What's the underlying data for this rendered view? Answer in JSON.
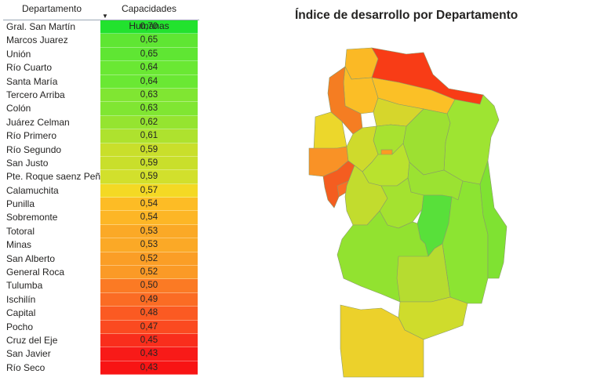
{
  "table": {
    "headers": {
      "departamento": "Departamento",
      "capacidades": "Capacidades Humanas"
    },
    "sort_indicator": "▼",
    "rows": [
      {
        "name": "Gral. San Martín",
        "value": "0,70",
        "color": "#22e22e"
      },
      {
        "name": "Marcos Juarez",
        "value": "0,65",
        "color": "#5fe633"
      },
      {
        "name": "Unión",
        "value": "0,65",
        "color": "#5fe633"
      },
      {
        "name": "Río Cuarto",
        "value": "0,64",
        "color": "#6ae833"
      },
      {
        "name": "Santa María",
        "value": "0,64",
        "color": "#6ae833"
      },
      {
        "name": "Tercero Arriba",
        "value": "0,63",
        "color": "#80e632"
      },
      {
        "name": "Colón",
        "value": "0,63",
        "color": "#80e632"
      },
      {
        "name": "Juárez Celman",
        "value": "0,62",
        "color": "#95e430"
      },
      {
        "name": "Río Primero",
        "value": "0,61",
        "color": "#aee22e"
      },
      {
        "name": "Río Segundo",
        "value": "0,59",
        "color": "#c9df2b"
      },
      {
        "name": "San Justo",
        "value": "0,59",
        "color": "#c9df2b"
      },
      {
        "name": "Pte. Roque saenz Peña",
        "value": "0,59",
        "color": "#d2e02c"
      },
      {
        "name": "Calamuchita",
        "value": "0,57",
        "color": "#f4d924"
      },
      {
        "name": "Punilla",
        "value": "0,54",
        "color": "#fdbc25"
      },
      {
        "name": "Sobremonte",
        "value": "0,54",
        "color": "#fdb626"
      },
      {
        "name": "Totoral",
        "value": "0,53",
        "color": "#fba926"
      },
      {
        "name": "Minas",
        "value": "0,53",
        "color": "#fba926"
      },
      {
        "name": "San Alberto",
        "value": "0,52",
        "color": "#fb9e26"
      },
      {
        "name": "General Roca",
        "value": "0,52",
        "color": "#fb9a26"
      },
      {
        "name": "Tulumba",
        "value": "0,50",
        "color": "#fb7a24"
      },
      {
        "name": "Ischilín",
        "value": "0,49",
        "color": "#fb6c24"
      },
      {
        "name": "Capital",
        "value": "0,48",
        "color": "#fb5a22"
      },
      {
        "name": "Pocho",
        "value": "0,47",
        "color": "#fb4a20"
      },
      {
        "name": "Cruz del Eje",
        "value": "0,45",
        "color": "#f92e1c"
      },
      {
        "name": "San Javier",
        "value": "0,43",
        "color": "#f81a18"
      },
      {
        "name": "Río Seco",
        "value": "0,43",
        "color": "#f81414"
      }
    ]
  },
  "map": {
    "title": "Índice de desarrollo por Departamento",
    "border_color": "#8a9a6a"
  }
}
